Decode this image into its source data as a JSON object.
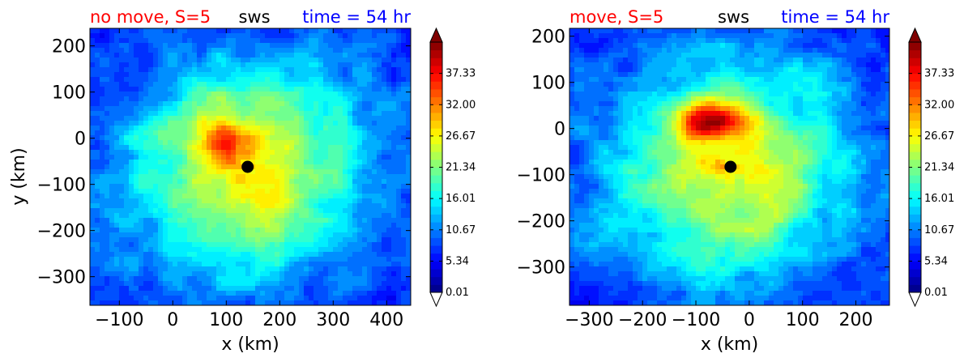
{
  "colors": {
    "left_title": "#ff0000",
    "center_title": "#000000",
    "right_title": "#0000ff"
  },
  "chart_data": [
    {
      "type": "heatmap",
      "title_left": "no move, S=5",
      "title_center": "sws",
      "title_right": "time = 54 hr",
      "xlabel": "x (km)",
      "ylabel": "y (km)",
      "xlim": [
        -155,
        445
      ],
      "ylim": [
        -362,
        238
      ],
      "x_ticks": [
        -100,
        0,
        100,
        200,
        300,
        400
      ],
      "x_tick_labels": [
        "−100",
        "0",
        "100",
        "200",
        "300",
        "400"
      ],
      "y_ticks": [
        200,
        100,
        0,
        -100,
        -200,
        -300
      ],
      "y_tick_labels": [
        "200",
        "100",
        "0",
        "−100",
        "−200",
        "−300"
      ],
      "center_marker": {
        "x": 140,
        "y": -62
      },
      "wind_max": {
        "x": 110,
        "y": -5,
        "value": 28
      },
      "colorbar": {
        "ticks": [
          37.33,
          32.0,
          26.67,
          21.34,
          16.01,
          10.67,
          5.34,
          0.01
        ],
        "tick_labels": [
          "37.33",
          "32.00",
          "26.67",
          "21.34",
          "16.01",
          "10.67",
          "5.34",
          "0.01"
        ],
        "range": [
          0.01,
          42.67
        ],
        "extend": "both"
      }
    },
    {
      "type": "heatmap",
      "title_left": "move, S=5",
      "title_center": "sws",
      "title_right": "time = 54 hr",
      "xlabel": "x (km)",
      "ylabel": "",
      "xlim": [
        -337,
        263
      ],
      "ylim": [
        -383,
        217
      ],
      "x_ticks": [
        -300,
        -200,
        -100,
        0,
        100,
        200
      ],
      "x_tick_labels": [
        "−300",
        "−200",
        "−100",
        "0",
        "100",
        "200"
      ],
      "y_ticks": [
        200,
        100,
        0,
        -100,
        -200,
        -300
      ],
      "y_tick_labels": [
        "200",
        "100",
        "0",
        "−100",
        "−200",
        "−300"
      ],
      "center_marker": {
        "x": -35,
        "y": -83
      },
      "wind_max": {
        "x": -70,
        "y": 20,
        "value": 36
      },
      "colorbar": {
        "ticks": [
          37.33,
          32.0,
          26.67,
          21.34,
          16.01,
          10.67,
          5.34,
          0.01
        ],
        "tick_labels": [
          "37.33",
          "32.00",
          "26.67",
          "21.34",
          "16.01",
          "10.67",
          "5.34",
          "0.01"
        ],
        "range": [
          0.01,
          42.67
        ],
        "extend": "both"
      }
    }
  ]
}
